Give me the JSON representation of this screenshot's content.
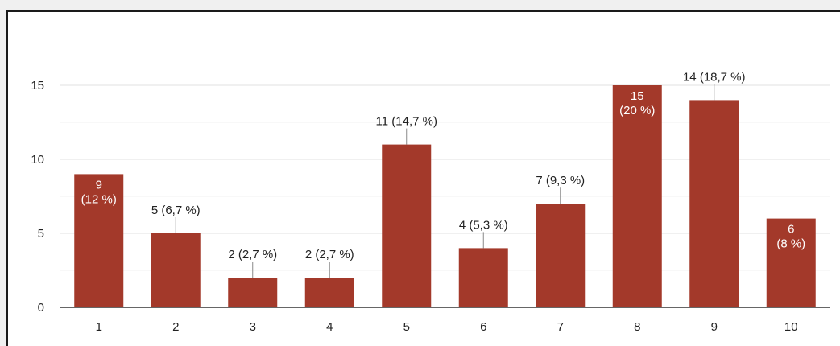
{
  "chart_data": {
    "type": "bar",
    "categories": [
      "1",
      "2",
      "3",
      "4",
      "5",
      "6",
      "7",
      "8",
      "9",
      "10"
    ],
    "values": [
      9,
      5,
      2,
      2,
      11,
      4,
      7,
      15,
      14,
      6
    ],
    "labels": [
      "9\n(12 %)",
      "5 (6,7 %)",
      "2 (2,7 %)",
      "2 (2,7 %)",
      "11 (14,7 %)",
      "4 (5,3 %)",
      "7 (9,3 %)",
      "15\n(20 %)",
      "14 (18,7 %)",
      "6\n(8 %)"
    ],
    "y_ticks": [
      "0",
      "5",
      "10",
      "15"
    ],
    "ylim": [
      0,
      15
    ],
    "grid": true,
    "bar_color": "#a3392a",
    "title": "",
    "xlabel": "",
    "ylabel": ""
  }
}
